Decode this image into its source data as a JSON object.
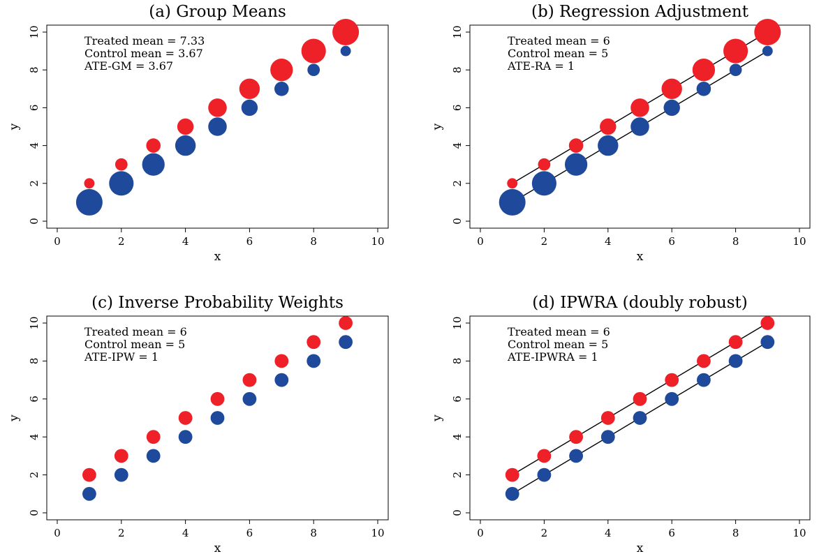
{
  "colors": {
    "treated": "#ee2028",
    "control": "#1f4a9b",
    "line": "#000000"
  },
  "chart_data": [
    {
      "type": "scatter",
      "title": "(a) Group Means",
      "xlabel": "x",
      "ylabel": "y",
      "xlim": [
        0,
        10
      ],
      "ylim": [
        0,
        10
      ],
      "xticks": [
        0,
        2,
        4,
        6,
        8,
        10
      ],
      "yticks": [
        0,
        2,
        4,
        6,
        8,
        10
      ],
      "grid": false,
      "annotations": [
        "Treated mean = 7.33",
        "Control mean = 3.67",
        "ATE-GM = 3.67"
      ],
      "fit_lines": false,
      "series": [
        {
          "group": "treated",
          "x": [
            1,
            2,
            3,
            4,
            5,
            6,
            7,
            8,
            9
          ],
          "y": [
            2,
            3,
            4,
            5,
            6,
            7,
            8,
            9,
            10
          ],
          "weight": [
            0.11,
            0.22,
            0.33,
            0.44,
            0.56,
            0.67,
            0.78,
            0.89,
            1.0
          ]
        },
        {
          "group": "control",
          "x": [
            1,
            2,
            3,
            4,
            5,
            6,
            7,
            8,
            9
          ],
          "y": [
            1,
            2,
            3,
            4,
            5,
            6,
            7,
            8,
            9
          ],
          "weight": [
            1.0,
            0.89,
            0.78,
            0.67,
            0.56,
            0.44,
            0.33,
            0.22,
            0.11
          ]
        }
      ]
    },
    {
      "type": "scatter",
      "title": "(b) Regression Adjustment",
      "xlabel": "x",
      "ylabel": "y",
      "xlim": [
        0,
        10
      ],
      "ylim": [
        0,
        10
      ],
      "xticks": [
        0,
        2,
        4,
        6,
        8,
        10
      ],
      "yticks": [
        0,
        2,
        4,
        6,
        8,
        10
      ],
      "grid": false,
      "annotations": [
        "Treated mean = 6",
        "Control mean = 5",
        "ATE-RA = 1"
      ],
      "fit_lines": true,
      "series": [
        {
          "group": "treated",
          "x": [
            1,
            2,
            3,
            4,
            5,
            6,
            7,
            8,
            9
          ],
          "y": [
            2,
            3,
            4,
            5,
            6,
            7,
            8,
            9,
            10
          ],
          "weight": [
            0.11,
            0.22,
            0.33,
            0.44,
            0.56,
            0.67,
            0.78,
            0.89,
            1.0
          ]
        },
        {
          "group": "control",
          "x": [
            1,
            2,
            3,
            4,
            5,
            6,
            7,
            8,
            9
          ],
          "y": [
            1,
            2,
            3,
            4,
            5,
            6,
            7,
            8,
            9
          ],
          "weight": [
            1.0,
            0.89,
            0.78,
            0.67,
            0.56,
            0.44,
            0.33,
            0.22,
            0.11
          ]
        }
      ]
    },
    {
      "type": "scatter",
      "title": "(c) Inverse Probability Weights",
      "xlabel": "x",
      "ylabel": "y",
      "xlim": [
        0,
        10
      ],
      "ylim": [
        0,
        10
      ],
      "xticks": [
        0,
        2,
        4,
        6,
        8,
        10
      ],
      "yticks": [
        0,
        2,
        4,
        6,
        8,
        10
      ],
      "grid": false,
      "annotations": [
        "Treated mean = 6",
        "Control mean = 5",
        "ATE-IPW = 1"
      ],
      "fit_lines": false,
      "series": [
        {
          "group": "treated",
          "x": [
            1,
            2,
            3,
            4,
            5,
            6,
            7,
            8,
            9
          ],
          "y": [
            2,
            3,
            4,
            5,
            6,
            7,
            8,
            9,
            10
          ],
          "weight": [
            0.3,
            0.3,
            0.3,
            0.3,
            0.3,
            0.3,
            0.3,
            0.3,
            0.3
          ]
        },
        {
          "group": "control",
          "x": [
            1,
            2,
            3,
            4,
            5,
            6,
            7,
            8,
            9
          ],
          "y": [
            1,
            2,
            3,
            4,
            5,
            6,
            7,
            8,
            9
          ],
          "weight": [
            0.3,
            0.3,
            0.3,
            0.3,
            0.3,
            0.3,
            0.3,
            0.3,
            0.3
          ]
        }
      ]
    },
    {
      "type": "scatter",
      "title": "(d) IPWRA (doubly robust)",
      "xlabel": "x",
      "ylabel": "y",
      "xlim": [
        0,
        10
      ],
      "ylim": [
        0,
        10
      ],
      "xticks": [
        0,
        2,
        4,
        6,
        8,
        10
      ],
      "yticks": [
        0,
        2,
        4,
        6,
        8,
        10
      ],
      "grid": false,
      "annotations": [
        "Treated mean = 6",
        "Control mean = 5",
        "ATE-IPWRA = 1"
      ],
      "fit_lines": true,
      "series": [
        {
          "group": "treated",
          "x": [
            1,
            2,
            3,
            4,
            5,
            6,
            7,
            8,
            9
          ],
          "y": [
            2,
            3,
            4,
            5,
            6,
            7,
            8,
            9,
            10
          ],
          "weight": [
            0.3,
            0.3,
            0.3,
            0.3,
            0.3,
            0.3,
            0.3,
            0.3,
            0.3
          ]
        },
        {
          "group": "control",
          "x": [
            1,
            2,
            3,
            4,
            5,
            6,
            7,
            8,
            9
          ],
          "y": [
            1,
            2,
            3,
            4,
            5,
            6,
            7,
            8,
            9
          ],
          "weight": [
            0.3,
            0.3,
            0.3,
            0.3,
            0.3,
            0.3,
            0.3,
            0.3,
            0.3
          ]
        }
      ]
    }
  ]
}
